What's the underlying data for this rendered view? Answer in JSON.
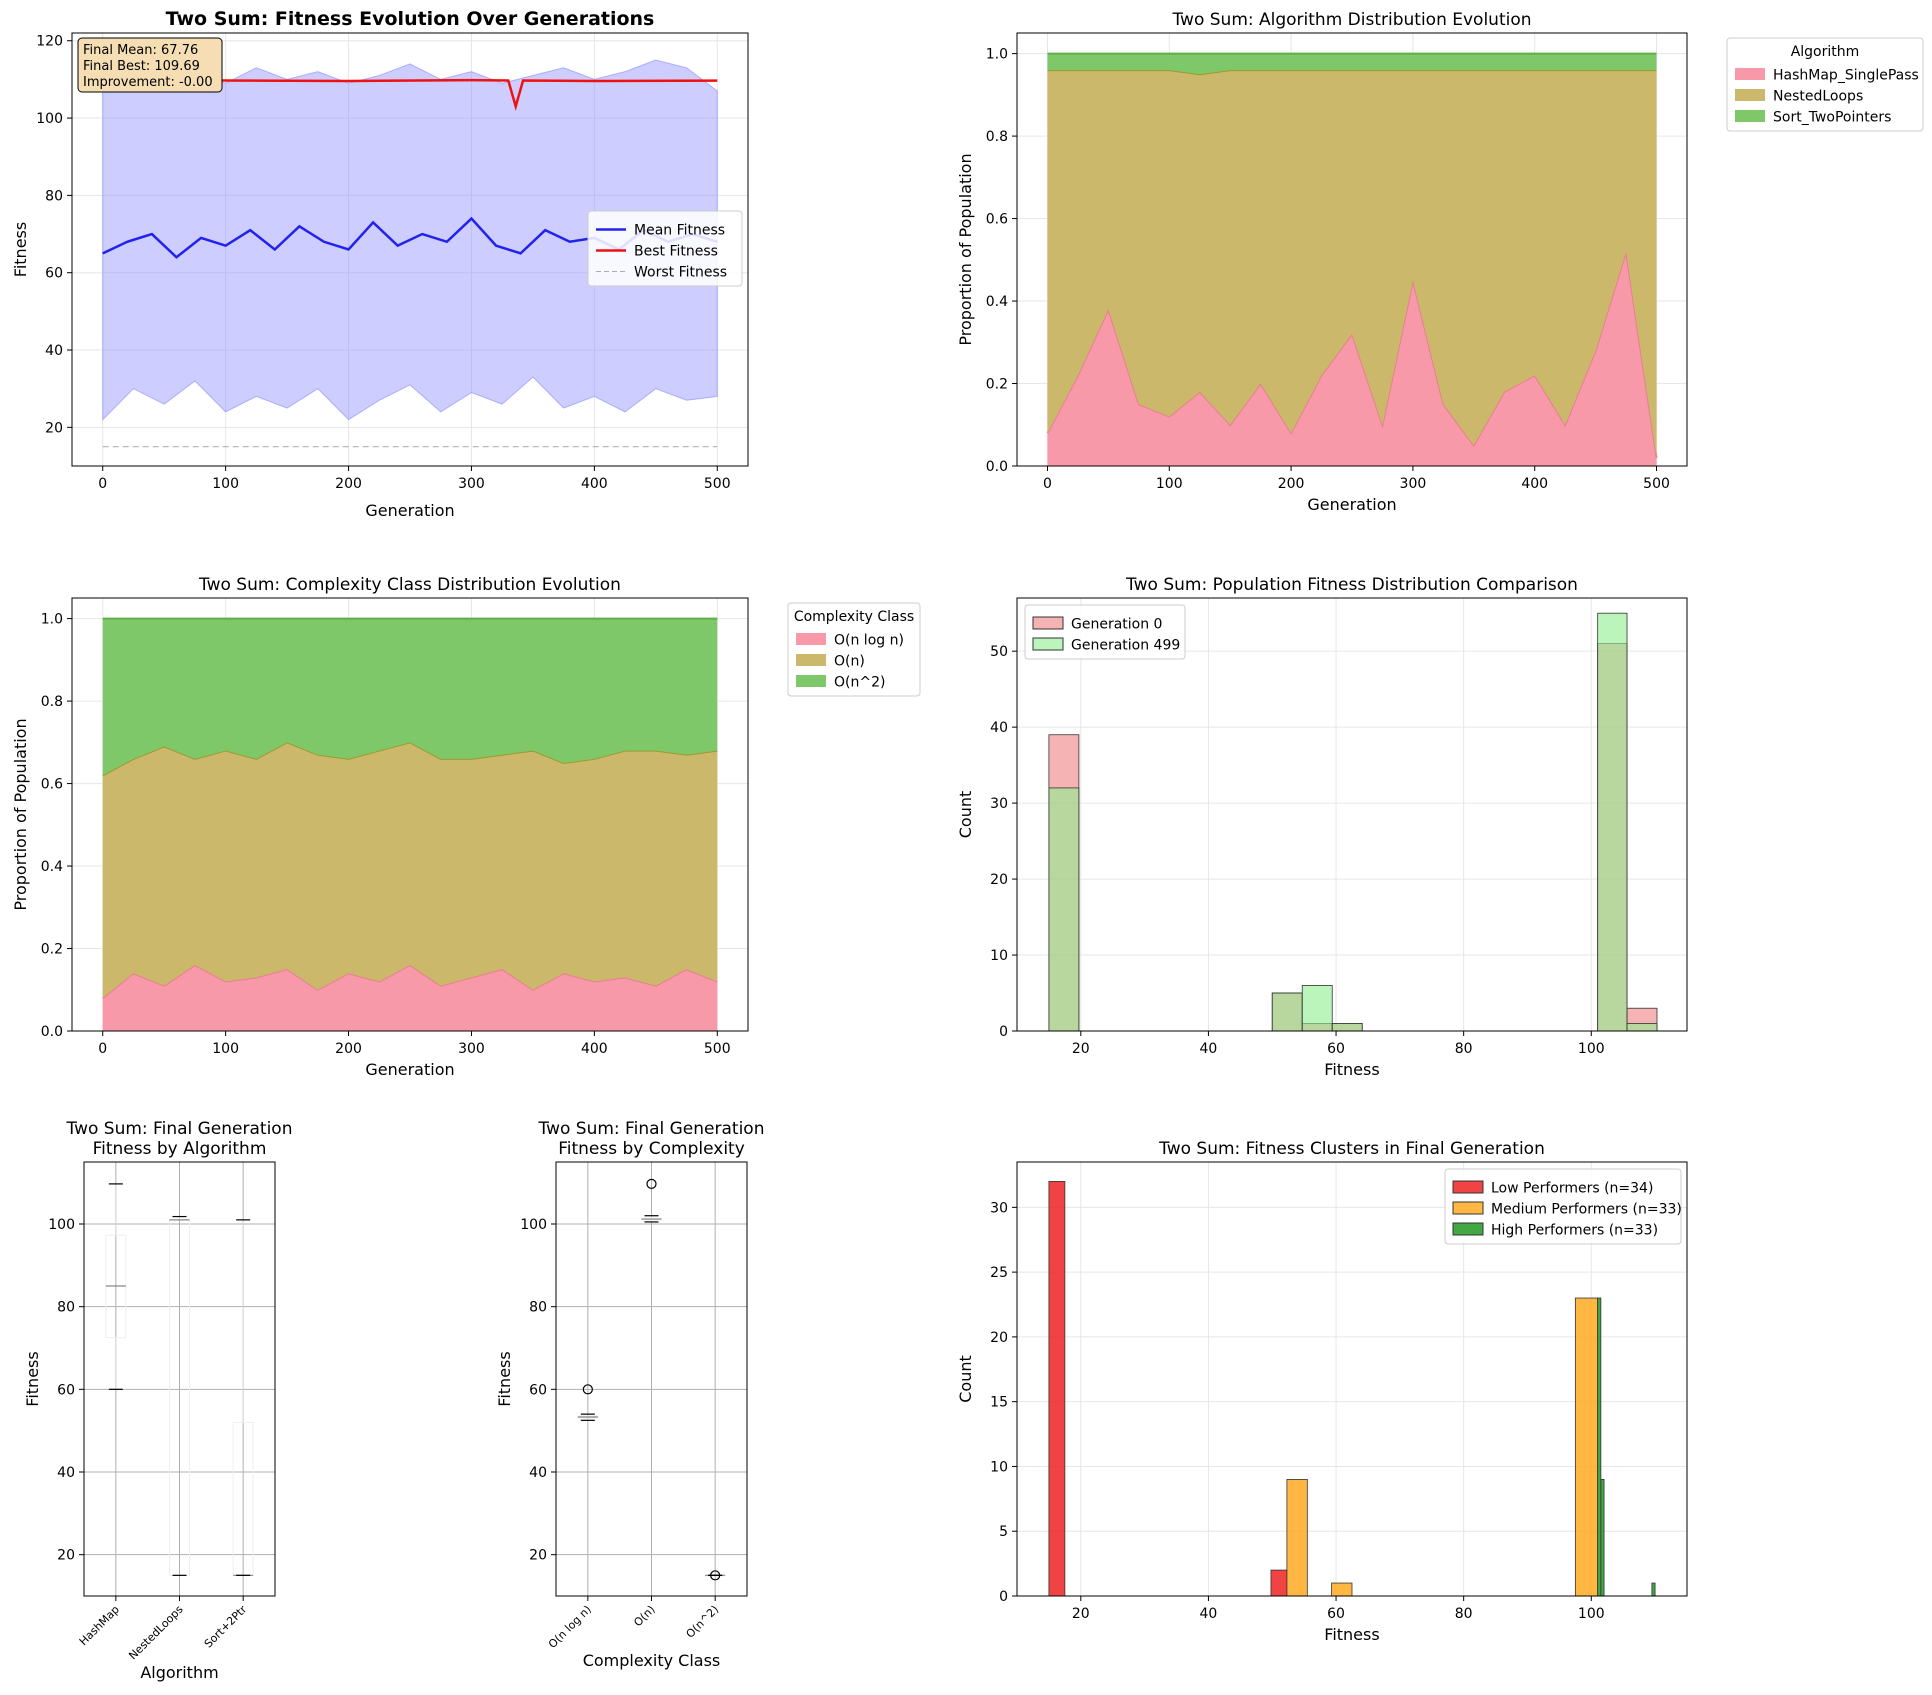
{
  "chart_data": [
    {
      "id": "fitness_evolution",
      "type": "line",
      "title": "Two Sum: Fitness Evolution Over Generations",
      "xlabel": "Generation",
      "ylabel": "Fitness",
      "xlim": [
        -25,
        525
      ],
      "ylim": [
        10,
        122
      ],
      "xticks": [
        0,
        100,
        200,
        300,
        400,
        500
      ],
      "yticks": [
        20,
        40,
        60,
        80,
        100,
        120
      ],
      "grid": true,
      "legend_position": "center-right",
      "series": [
        {
          "name": "Mean Fitness",
          "color": "#2222ee",
          "style": "solid",
          "x": [
            0,
            20,
            40,
            60,
            80,
            100,
            120,
            140,
            160,
            180,
            200,
            220,
            240,
            260,
            280,
            300,
            320,
            340,
            360,
            380,
            400,
            420,
            440,
            460,
            480,
            500
          ],
          "y": [
            65,
            68,
            70,
            64,
            69,
            67,
            71,
            66,
            72,
            68,
            66,
            73,
            67,
            70,
            68,
            74,
            67,
            65,
            71,
            68,
            69,
            66,
            71,
            68,
            70,
            68
          ]
        },
        {
          "name": "Best Fitness",
          "color": "#ee1111",
          "style": "solid",
          "x": [
            0,
            100,
            200,
            300,
            330,
            336,
            342,
            400,
            500
          ],
          "y": [
            109.5,
            109.7,
            109.6,
            109.8,
            109.7,
            103,
            109.7,
            109.6,
            109.69
          ]
        },
        {
          "name": "Worst Fitness",
          "color": "#aaaaaa",
          "style": "dashed",
          "x": [
            0,
            500
          ],
          "y": [
            15,
            15
          ]
        }
      ],
      "band": {
        "color": "#8888ff",
        "x": [
          0,
          25,
          50,
          75,
          100,
          125,
          150,
          175,
          200,
          225,
          250,
          275,
          300,
          325,
          350,
          375,
          400,
          425,
          450,
          475,
          500
        ],
        "upper": [
          108,
          110,
          112,
          111,
          109,
          113,
          110,
          112,
          109,
          111,
          114,
          110,
          112,
          109,
          111,
          113,
          110,
          112,
          115,
          113,
          107
        ],
        "lower": [
          22,
          30,
          26,
          32,
          24,
          28,
          25,
          30,
          22,
          27,
          31,
          24,
          29,
          26,
          33,
          25,
          28,
          24,
          30,
          27,
          28
        ]
      },
      "annotation": [
        "Final Mean: 67.76",
        "Final Best: 109.69",
        "Improvement: -0.00"
      ]
    },
    {
      "id": "algorithm_distribution",
      "type": "area",
      "title": "Two Sum: Algorithm Distribution Evolution",
      "xlabel": "Generation",
      "ylabel": "Proportion of Population",
      "xlim": [
        -25,
        525
      ],
      "ylim": [
        0,
        1.05
      ],
      "xticks": [
        0,
        100,
        200,
        300,
        400,
        500
      ],
      "yticks": [
        0.0,
        0.2,
        0.4,
        0.6,
        0.8,
        1.0
      ],
      "grid": true,
      "legend_title": "Algorithm",
      "legend_position": "outside-right",
      "x": [
        0,
        25,
        50,
        75,
        100,
        125,
        150,
        175,
        200,
        225,
        250,
        275,
        300,
        325,
        350,
        375,
        400,
        425,
        450,
        475,
        500
      ],
      "series": [
        {
          "name": "HashMap_SinglePass",
          "color": "#f899a9",
          "line": "#e6808f",
          "values": [
            0.08,
            0.22,
            0.38,
            0.15,
            0.12,
            0.18,
            0.1,
            0.2,
            0.08,
            0.22,
            0.32,
            0.1,
            0.45,
            0.15,
            0.05,
            0.18,
            0.22,
            0.1,
            0.28,
            0.52,
            0.02
          ]
        },
        {
          "name": "NestedLoops",
          "color": "#ccb86a",
          "line": "#9c9a2c",
          "values": [
            0.88,
            0.74,
            0.58,
            0.81,
            0.84,
            0.77,
            0.86,
            0.76,
            0.88,
            0.74,
            0.64,
            0.86,
            0.51,
            0.81,
            0.91,
            0.78,
            0.74,
            0.86,
            0.68,
            0.44,
            0.94
          ]
        },
        {
          "name": "Sort_TwoPointers",
          "color": "#7ec86a",
          "line": "#5fae48",
          "values": [
            0.04,
            0.04,
            0.04,
            0.04,
            0.04,
            0.05,
            0.04,
            0.04,
            0.04,
            0.04,
            0.04,
            0.04,
            0.04,
            0.04,
            0.04,
            0.04,
            0.04,
            0.04,
            0.04,
            0.04,
            0.04
          ]
        }
      ]
    },
    {
      "id": "complexity_distribution",
      "type": "area",
      "title": "Two Sum: Complexity Class Distribution Evolution",
      "xlabel": "Generation",
      "ylabel": "Proportion of Population",
      "xlim": [
        -25,
        525
      ],
      "ylim": [
        0,
        1.05
      ],
      "xticks": [
        0,
        100,
        200,
        300,
        400,
        500
      ],
      "yticks": [
        0.0,
        0.2,
        0.4,
        0.6,
        0.8,
        1.0
      ],
      "grid": true,
      "legend_title": "Complexity Class",
      "legend_position": "outside-right",
      "x": [
        0,
        25,
        50,
        75,
        100,
        125,
        150,
        175,
        200,
        225,
        250,
        275,
        300,
        325,
        350,
        375,
        400,
        425,
        450,
        475,
        500
      ],
      "series": [
        {
          "name": "O(n log n)",
          "color": "#f899a9",
          "line": "#e6808f",
          "values": [
            0.08,
            0.14,
            0.11,
            0.16,
            0.12,
            0.13,
            0.15,
            0.1,
            0.14,
            0.12,
            0.16,
            0.11,
            0.13,
            0.15,
            0.1,
            0.14,
            0.12,
            0.13,
            0.11,
            0.15,
            0.12
          ]
        },
        {
          "name": "O(n)",
          "color": "#ccb86a",
          "line": "#9c9a2c",
          "values": [
            0.54,
            0.52,
            0.58,
            0.5,
            0.56,
            0.53,
            0.55,
            0.57,
            0.52,
            0.56,
            0.54,
            0.55,
            0.53,
            0.52,
            0.58,
            0.51,
            0.54,
            0.55,
            0.57,
            0.52,
            0.56
          ]
        },
        {
          "name": "O(n^2)",
          "color": "#7ec86a",
          "line": "#5fae48",
          "values": [
            0.38,
            0.34,
            0.31,
            0.34,
            0.32,
            0.34,
            0.3,
            0.33,
            0.34,
            0.32,
            0.3,
            0.34,
            0.34,
            0.33,
            0.32,
            0.35,
            0.34,
            0.32,
            0.32,
            0.33,
            0.32
          ]
        }
      ]
    },
    {
      "id": "fitness_histogram",
      "type": "bar",
      "subtype": "histogram",
      "title": "Two Sum: Population Fitness Distribution Comparison",
      "xlabel": "Fitness",
      "ylabel": "Count",
      "xlim": [
        10,
        115
      ],
      "ylim": [
        0,
        57
      ],
      "xticks": [
        20,
        40,
        60,
        80,
        100
      ],
      "yticks": [
        0,
        10,
        20,
        30,
        40,
        50
      ],
      "grid": true,
      "legend_position": "top-left",
      "series": [
        {
          "name": "Generation 0",
          "color": "#f08080",
          "bins": [
            [
              15,
              19.7,
              39
            ],
            [
              50,
              54.7,
              5
            ],
            [
              54.7,
              59.4,
              1
            ],
            [
              59.4,
              64.1,
              1
            ],
            [
              101,
              105.6,
              51
            ],
            [
              105.6,
              110.3,
              3
            ]
          ]
        },
        {
          "name": "Generation 499",
          "color": "#90ee90",
          "bins": [
            [
              15,
              19.7,
              32
            ],
            [
              50,
              54.7,
              5
            ],
            [
              54.7,
              59.4,
              6
            ],
            [
              59.4,
              64.1,
              1
            ],
            [
              101,
              105.6,
              55
            ],
            [
              105.6,
              110.3,
              1
            ]
          ]
        }
      ]
    },
    {
      "id": "box_algorithm",
      "type": "box",
      "title": [
        "Two Sum: Final Generation",
        "Fitness by Algorithm"
      ],
      "xlabel": "Algorithm",
      "ylabel": "Fitness",
      "ylim": [
        10,
        115
      ],
      "yticks": [
        20,
        40,
        60,
        80,
        100
      ],
      "grid": true,
      "categories": [
        "HashMap",
        "NestedLoops",
        "Sort+2Ptr"
      ],
      "boxes": [
        {
          "whislo": 60,
          "q1": 72.5,
          "med": 85,
          "q3": 97.3,
          "whishi": 109.7,
          "fliers": []
        },
        {
          "whislo": 15,
          "q1": 15,
          "med": 101,
          "q3": 101,
          "whishi": 101.8,
          "fliers": []
        },
        {
          "whislo": 15,
          "q1": 15,
          "med": 15,
          "q3": 52,
          "whishi": 101,
          "fliers": []
        }
      ]
    },
    {
      "id": "box_complexity",
      "type": "box",
      "title": [
        "Two Sum: Final Generation",
        "Fitness by Complexity"
      ],
      "xlabel": "Complexity Class",
      "ylabel": "Fitness",
      "ylim": [
        10,
        115
      ],
      "yticks": [
        20,
        40,
        60,
        80,
        100
      ],
      "grid": true,
      "categories": [
        "O(n log n)",
        "O(n)",
        "O(n^2)"
      ],
      "boxes": [
        {
          "whislo": 52.5,
          "q1": 53,
          "med": 53.3,
          "q3": 53.5,
          "whishi": 54,
          "fliers": [
            60
          ]
        },
        {
          "whislo": 100.5,
          "q1": 101,
          "med": 101.2,
          "q3": 101.4,
          "whishi": 102,
          "fliers": [
            109.7
          ]
        },
        {
          "whislo": 15,
          "q1": 15,
          "med": 15,
          "q3": 15,
          "whishi": 15,
          "fliers": [
            15
          ]
        }
      ]
    },
    {
      "id": "fitness_clusters",
      "type": "bar",
      "subtype": "histogram",
      "title": "Two Sum: Fitness Clusters in Final Generation",
      "xlabel": "Fitness",
      "ylabel": "Count",
      "xlim": [
        10,
        115
      ],
      "ylim": [
        0,
        33.5
      ],
      "xticks": [
        20,
        40,
        60,
        80,
        100
      ],
      "yticks": [
        0,
        5,
        10,
        15,
        20,
        25,
        30
      ],
      "grid": true,
      "legend_position": "top-right",
      "series": [
        {
          "name": "Low Performers (n=34)",
          "color": "#ee2222",
          "bins": [
            [
              15,
              17.5,
              32
            ],
            [
              49.8,
              52.3,
              2
            ]
          ]
        },
        {
          "name": "Medium Performers (n=33)",
          "color": "#ffaa22",
          "bins": [
            [
              52.3,
              55.5,
              9
            ],
            [
              59.3,
              62.5,
              1
            ],
            [
              97.5,
              101,
              23
            ]
          ]
        },
        {
          "name": "High Performers (n=33)",
          "color": "#229922",
          "bins": [
            [
              101,
              101.5,
              23
            ],
            [
              101.5,
              102,
              9
            ],
            [
              109.5,
              110,
              1
            ]
          ]
        }
      ]
    }
  ]
}
